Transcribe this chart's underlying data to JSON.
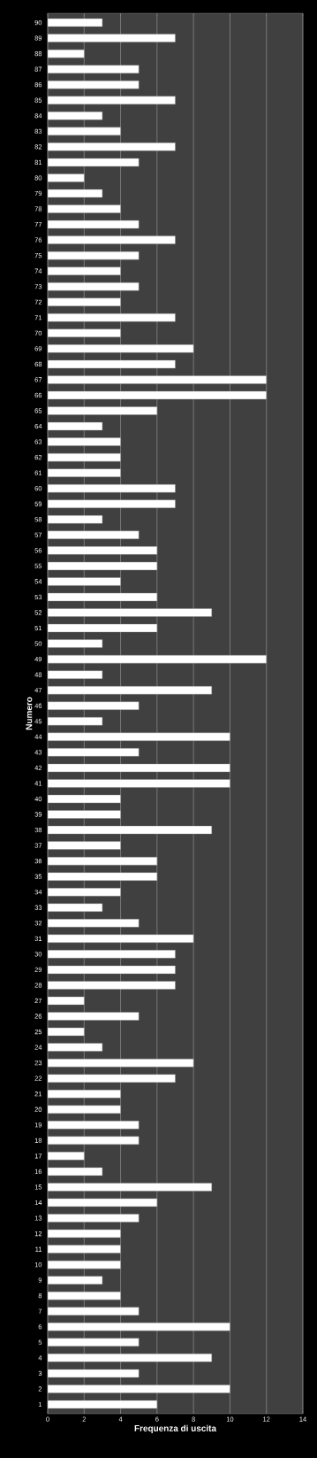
{
  "chart_data": {
    "type": "bar",
    "orientation": "horizontal",
    "xlabel": "Frequenza di uscita",
    "ylabel": "Numero",
    "categories": [
      "90",
      "89",
      "88",
      "87",
      "86",
      "85",
      "84",
      "83",
      "82",
      "81",
      "80",
      "79",
      "78",
      "77",
      "76",
      "75",
      "74",
      "73",
      "72",
      "71",
      "70",
      "69",
      "68",
      "67",
      "66",
      "65",
      "64",
      "63",
      "62",
      "61",
      "60",
      "59",
      "58",
      "57",
      "56",
      "55",
      "54",
      "53",
      "52",
      "51",
      "50",
      "49",
      "48",
      "47",
      "46",
      "45",
      "44",
      "43",
      "42",
      "41",
      "40",
      "39",
      "38",
      "37",
      "36",
      "35",
      "34",
      "33",
      "32",
      "31",
      "30",
      "29",
      "28",
      "27",
      "26",
      "25",
      "24",
      "23",
      "22",
      "21",
      "20",
      "19",
      "18",
      "17",
      "16",
      "15",
      "14",
      "13",
      "12",
      "11",
      "10",
      "9",
      "8",
      "7",
      "6",
      "5",
      "4",
      "3",
      "2",
      "1"
    ],
    "values": [
      3,
      7,
      2,
      5,
      5,
      7,
      3,
      4,
      7,
      5,
      2,
      3,
      4,
      5,
      7,
      5,
      4,
      5,
      4,
      7,
      4,
      8,
      7,
      12,
      12,
      6,
      3,
      4,
      4,
      4,
      7,
      7,
      3,
      5,
      6,
      6,
      4,
      6,
      9,
      6,
      3,
      12,
      3,
      9,
      5,
      3,
      10,
      5,
      10,
      10,
      4,
      4,
      9,
      4,
      6,
      6,
      4,
      3,
      5,
      8,
      7,
      7,
      7,
      2,
      5,
      2,
      3,
      8,
      7,
      4,
      4,
      5,
      5,
      2,
      3,
      9,
      6,
      5,
      4,
      4,
      4,
      3,
      4,
      5,
      10,
      5,
      9,
      5,
      10,
      6
    ],
    "color": "#ffffff",
    "xlim": [
      0,
      14
    ],
    "xticks": [
      0,
      2,
      4,
      6,
      8,
      10,
      12,
      14
    ],
    "grid": "x"
  }
}
